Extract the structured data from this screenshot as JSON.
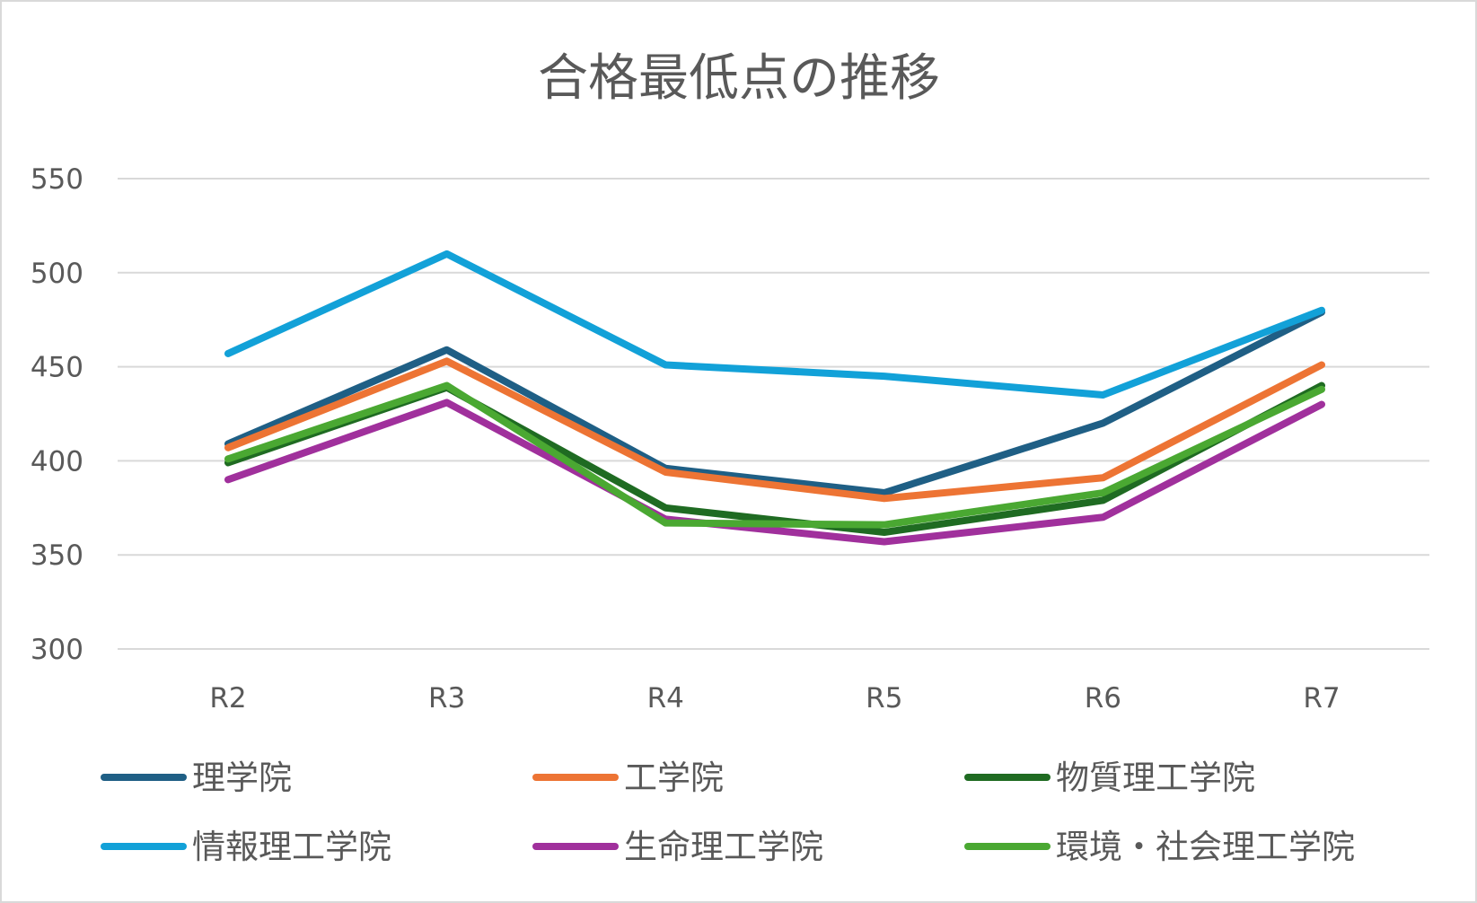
{
  "chart_data": {
    "type": "line",
    "title": "合格最低点の推移",
    "xlabel": "",
    "ylabel": "",
    "categories": [
      "R2",
      "R3",
      "R4",
      "R5",
      "R6",
      "R7"
    ],
    "ylim": [
      300,
      550
    ],
    "yticks": [
      300,
      350,
      400,
      450,
      500,
      550
    ],
    "grid": true,
    "legend_position": "bottom",
    "series": [
      {
        "name": "理学院",
        "color": "#1f5f85",
        "values": [
          409,
          459,
          396,
          383,
          420,
          479
        ]
      },
      {
        "name": "工学院",
        "color": "#ed7434",
        "values": [
          407,
          453,
          394,
          380,
          391,
          451
        ]
      },
      {
        "name": "物質理工学院",
        "color": "#1f6b22",
        "values": [
          399,
          439,
          375,
          362,
          379,
          440
        ]
      },
      {
        "name": "情報理工学院",
        "color": "#12a1d8",
        "values": [
          457,
          510,
          451,
          445,
          435,
          480
        ]
      },
      {
        "name": "生命理工学院",
        "color": "#a0309c",
        "values": [
          390,
          431,
          369,
          357,
          370,
          430
        ]
      },
      {
        "name": "環境・社会理工学院",
        "color": "#4aa832",
        "values": [
          401,
          440,
          367,
          366,
          383,
          438
        ]
      }
    ]
  }
}
